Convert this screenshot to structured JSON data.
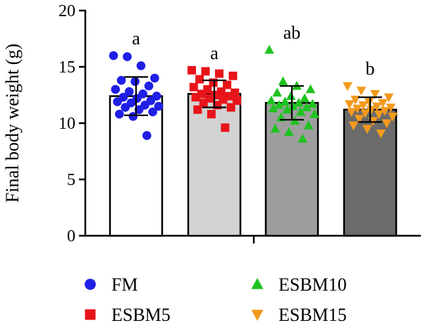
{
  "chart_data": {
    "type": "bar",
    "title": "",
    "xlabel": "",
    "ylabel": "Final body weight (g)",
    "ylim": [
      0,
      20
    ],
    "yticks": [
      0,
      5,
      10,
      15,
      20
    ],
    "grid": false,
    "legend_position": "bottom",
    "error_bar_type": "SD",
    "series": [
      {
        "name": "FM",
        "mean": 12.4,
        "error": 1.7,
        "significance": "a",
        "bar_color": "#ffffff",
        "marker": "circle",
        "marker_color": "#1f1fe6",
        "points": [
          16.0,
          15.9,
          15.1,
          14.0,
          13.8,
          13.7,
          13.3,
          13.0,
          12.8,
          12.6,
          12.4,
          12.3,
          12.2,
          12.0,
          11.9,
          11.8,
          11.6,
          11.5,
          11.4,
          11.2,
          11.0,
          10.8,
          10.6,
          8.9
        ]
      },
      {
        "name": "ESBM5",
        "mean": 12.6,
        "error": 1.2,
        "significance": "a",
        "bar_color": "#d3d3d3",
        "marker": "square",
        "marker_color": "#e8141a",
        "points": [
          14.7,
          14.6,
          14.4,
          14.2,
          13.9,
          13.6,
          13.4,
          13.2,
          13.0,
          12.8,
          12.7,
          12.6,
          12.5,
          12.4,
          12.3,
          12.2,
          12.1,
          12.0,
          11.8,
          11.6,
          11.4,
          11.2,
          10.8,
          9.6
        ]
      },
      {
        "name": "ESBM10",
        "mean": 11.8,
        "error": 1.5,
        "significance": "ab",
        "bar_color": "#9e9e9e",
        "marker": "triangle-up",
        "marker_color": "#1ec31e",
        "points": [
          16.5,
          13.7,
          13.3,
          13.0,
          12.7,
          12.4,
          12.2,
          12.0,
          11.9,
          11.8,
          11.7,
          11.6,
          11.5,
          11.4,
          11.3,
          11.2,
          11.0,
          10.8,
          10.5,
          10.2,
          9.8,
          9.5,
          9.2,
          8.6
        ]
      },
      {
        "name": "ESBM15",
        "mean": 11.2,
        "error": 1.1,
        "significance": "b",
        "bar_color": "#6b6b6b",
        "marker": "triangle-down",
        "marker_color": "#f39a1c",
        "points": [
          13.3,
          12.9,
          12.6,
          12.3,
          12.1,
          11.9,
          11.8,
          11.7,
          11.6,
          11.5,
          11.4,
          11.3,
          11.2,
          11.1,
          11.0,
          10.9,
          10.8,
          10.6,
          10.4,
          10.2,
          10.0,
          9.8,
          9.5,
          9.1
        ]
      }
    ]
  },
  "legend": [
    {
      "label": "FM",
      "marker": "circle",
      "color": "#1f1fe6"
    },
    {
      "label": "ESBM10",
      "marker": "triangle-up",
      "color": "#1ec31e"
    },
    {
      "label": "ESBM5",
      "marker": "square",
      "color": "#e8141a"
    },
    {
      "label": "ESBM15",
      "marker": "triangle-down",
      "color": "#f39a1c"
    }
  ]
}
